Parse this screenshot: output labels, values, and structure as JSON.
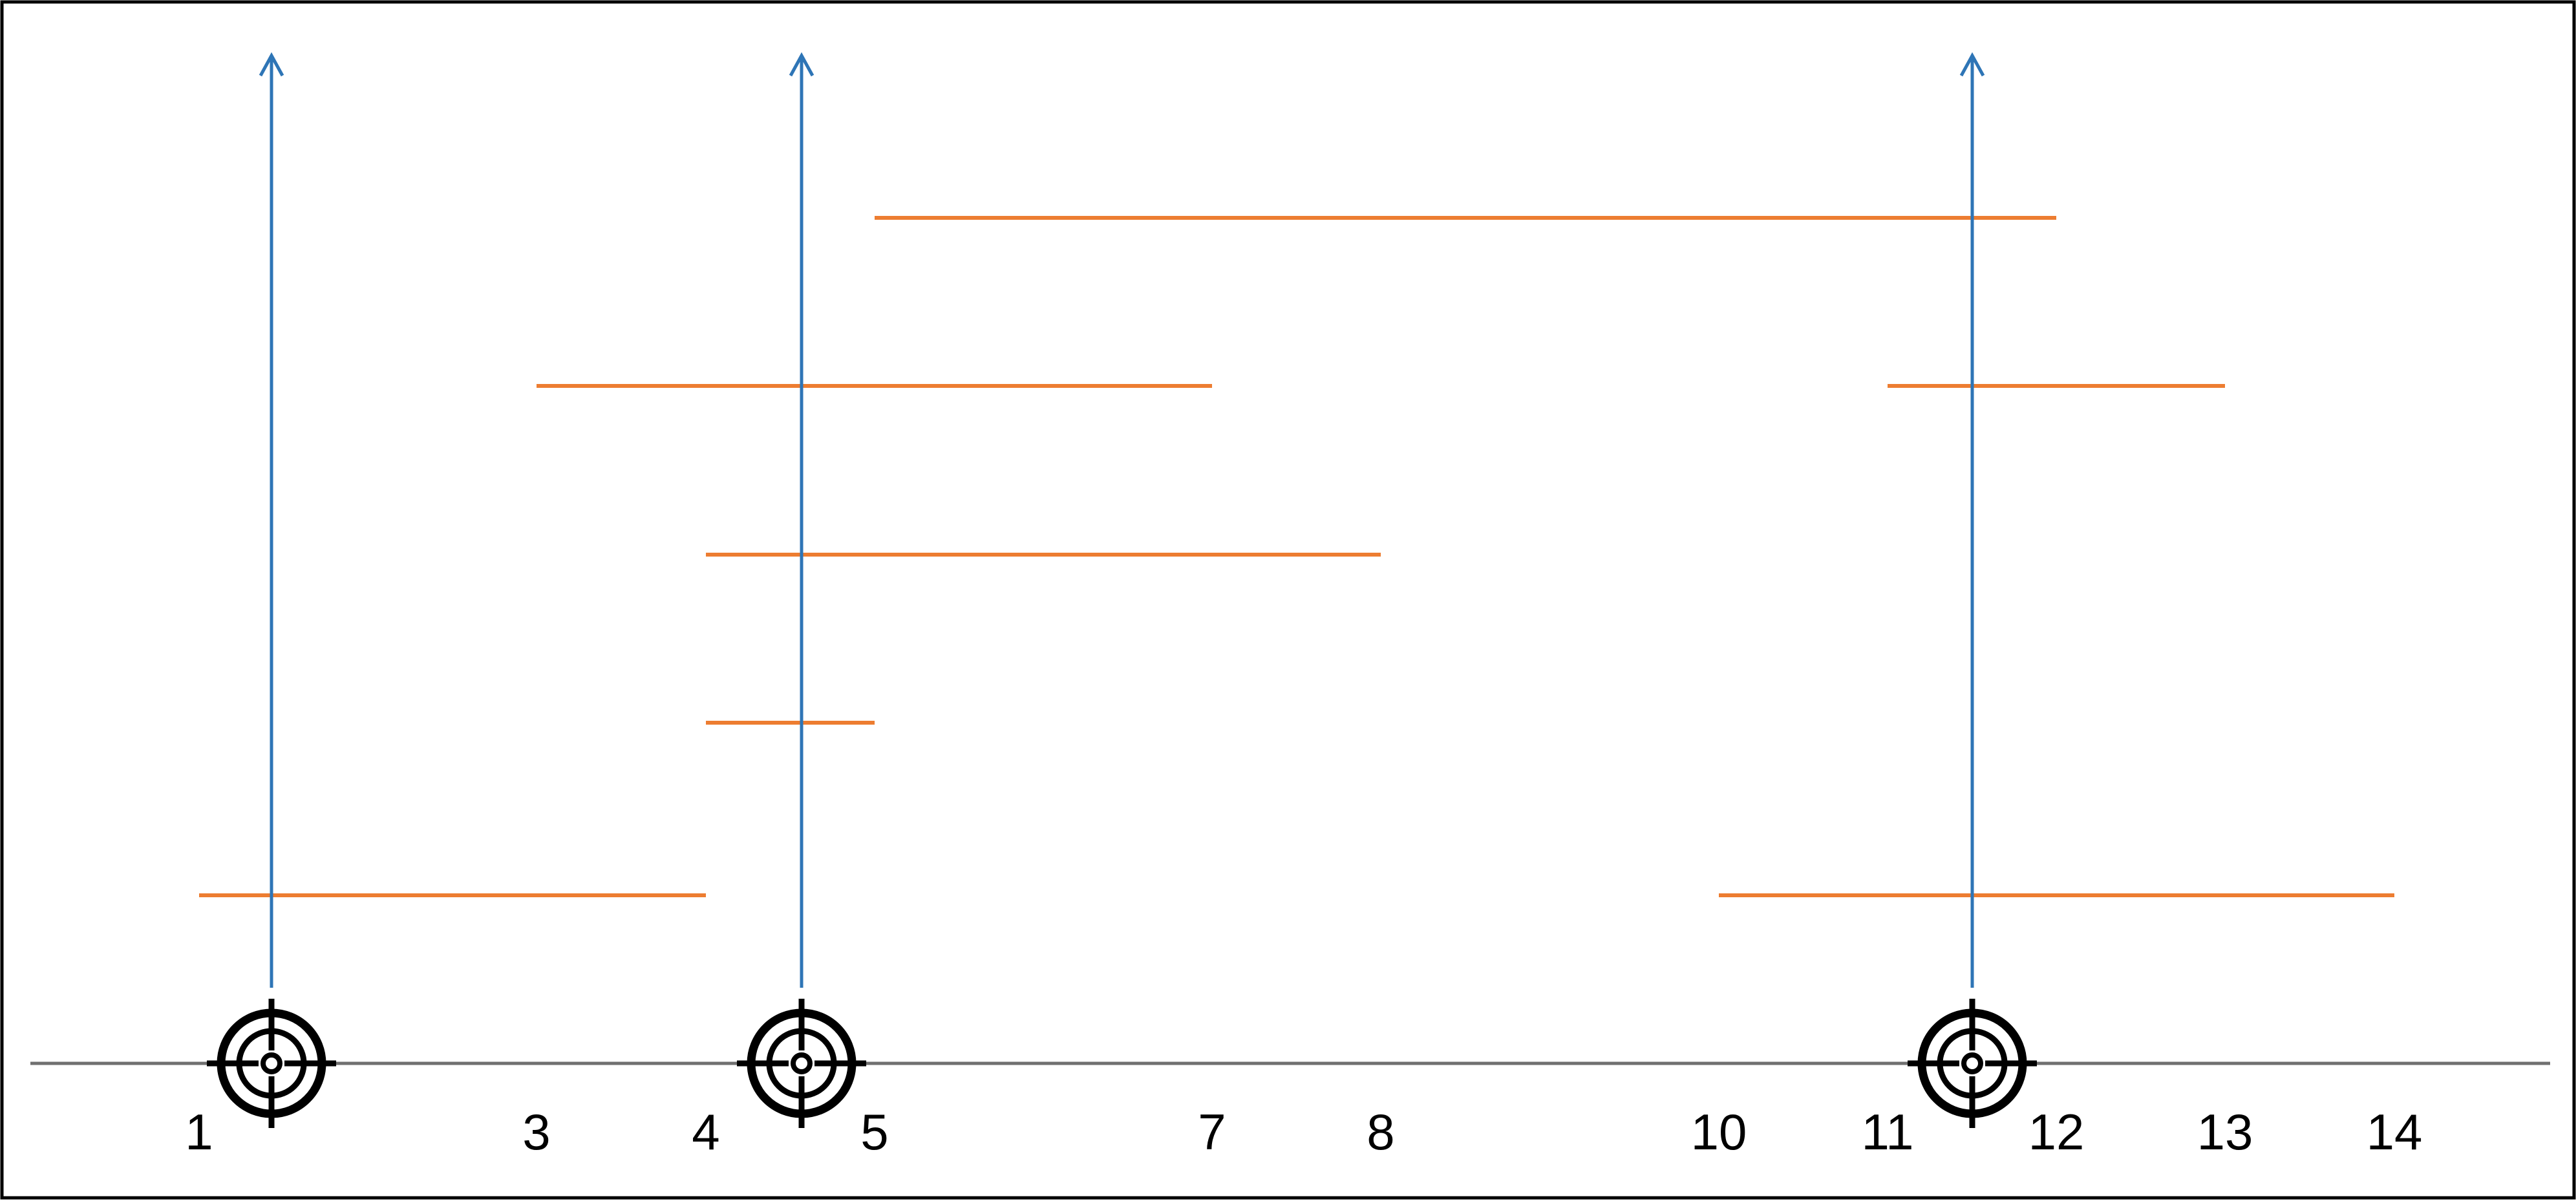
{
  "diagram": {
    "axis_labels": [
      "1",
      "3",
      "4",
      "5",
      "7",
      "8",
      "10",
      "11",
      "12",
      "13",
      "14"
    ],
    "axis_tick_values": [
      1,
      3,
      4,
      5,
      7,
      8,
      10,
      11,
      12,
      13,
      14
    ],
    "targets": [
      1.43,
      4.57,
      11.5
    ],
    "intervals": [
      {
        "start": 5,
        "end": 12
      },
      {
        "start": 3,
        "end": 7
      },
      {
        "start": 11,
        "end": 13
      },
      {
        "start": 4,
        "end": 8
      },
      {
        "start": 4,
        "end": 5
      },
      {
        "start": 1,
        "end": 4
      },
      {
        "start": 10,
        "end": 14
      }
    ],
    "colors": {
      "interval": "#ed7d31",
      "arrow": "#2e75b6",
      "axis": "#707070",
      "frame": "#000000",
      "target": "#000000",
      "label": "#000000"
    }
  }
}
